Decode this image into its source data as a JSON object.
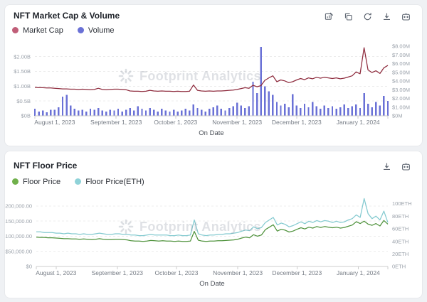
{
  "charts": [
    {
      "title": "NFT Market Cap & Volume",
      "toolbar": [
        "view-table-icon",
        "copy-icon",
        "refresh-icon",
        "download-icon",
        "api-icon"
      ],
      "legend": [
        {
          "label": "Market Cap",
          "color": "#c05e78"
        },
        {
          "label": "Volume",
          "color": "#6a71d6"
        }
      ],
      "watermark": "Footprint Analytics",
      "chart_data": {
        "type": "line+bar",
        "title": "NFT Market Cap & Volume",
        "xlabel": "On Date",
        "x_unit": "days",
        "x_domain": [
          0,
          178
        ],
        "x_ticks": [
          {
            "day": 10,
            "label": "August 1, 2023"
          },
          {
            "day": 41,
            "label": "September 1, 2023"
          },
          {
            "day": 71,
            "label": "October 1, 2023"
          },
          {
            "day": 102,
            "label": "November 1, 2023"
          },
          {
            "day": 132,
            "label": "December 1, 2023"
          },
          {
            "day": 163,
            "label": "January 1, 2024"
          }
        ],
        "left_axis": {
          "unit": "USD billions",
          "min": 0,
          "max": 2.35,
          "ticks": [
            {
              "v": 0,
              "label": "$0B"
            },
            {
              "v": 0.5,
              "label": "$0.5B"
            },
            {
              "v": 1.0,
              "label": "$1.00B"
            },
            {
              "v": 1.5,
              "label": "$1.50B"
            },
            {
              "v": 2.0,
              "label": "$2.00B"
            }
          ]
        },
        "right_axis": {
          "unit": "USD millions",
          "min": 0,
          "max": 8.0,
          "ticks": [
            {
              "v": 0,
              "label": "$0M"
            },
            {
              "v": 1,
              "label": "$1.00M"
            },
            {
              "v": 2,
              "label": "$2.00M"
            },
            {
              "v": 3,
              "label": "$3.00M"
            },
            {
              "v": 4,
              "label": "$4.00M"
            },
            {
              "v": 5,
              "label": "$5.00M"
            },
            {
              "v": 6,
              "label": "$6.00M"
            },
            {
              "v": 7,
              "label": "$7.00M"
            },
            {
              "v": 8,
              "label": "$8.00M"
            }
          ]
        },
        "series": [
          {
            "name": "Volume",
            "type": "bar",
            "axis": "right",
            "color": "#6a71d6",
            "day_step": 2,
            "values": [
              0.8,
              0.5,
              0.6,
              0.4,
              0.7,
              0.7,
              1.0,
              2.2,
              2.4,
              1.2,
              0.8,
              0.6,
              0.7,
              0.5,
              0.8,
              0.7,
              0.9,
              0.6,
              0.5,
              0.7,
              0.6,
              0.8,
              0.5,
              0.7,
              0.9,
              0.6,
              1.1,
              0.8,
              0.6,
              0.9,
              0.7,
              0.5,
              0.8,
              0.6,
              0.5,
              0.7,
              0.5,
              0.6,
              0.8,
              0.6,
              1.3,
              0.9,
              0.7,
              0.5,
              0.8,
              1.0,
              1.2,
              0.8,
              0.6,
              0.9,
              1.1,
              1.5,
              1.2,
              0.9,
              1.1,
              3.9,
              2.6,
              7.9,
              3.4,
              2.8,
              2.4,
              1.6,
              1.2,
              1.4,
              1.0,
              2.5,
              1.2,
              0.9,
              1.4,
              1.0,
              1.6,
              1.1,
              0.8,
              1.2,
              0.9,
              1.1,
              0.8,
              1.0,
              1.3,
              0.9,
              1.1,
              1.3,
              0.9,
              2.6,
              1.4,
              1.0,
              1.6,
              1.2,
              2.3,
              1.7
            ]
          },
          {
            "name": "Market Cap",
            "type": "line",
            "axis": "left",
            "color": "#8e2b3d",
            "day_step": 2,
            "values": [
              0.96,
              0.95,
              0.95,
              0.94,
              0.94,
              0.93,
              0.92,
              0.91,
              0.91,
              0.9,
              0.9,
              0.89,
              0.9,
              0.89,
              0.88,
              0.89,
              0.93,
              0.89,
              0.88,
              0.89,
              0.9,
              0.9,
              0.89,
              0.88,
              0.84,
              0.83,
              0.83,
              0.82,
              0.83,
              0.86,
              0.84,
              0.83,
              0.84,
              0.83,
              0.83,
              0.82,
              0.83,
              0.82,
              0.82,
              0.83,
              1.04,
              0.86,
              0.84,
              0.83,
              0.84,
              0.83,
              0.84,
              0.84,
              0.85,
              0.86,
              0.87,
              0.89,
              0.92,
              0.95,
              0.93,
              1.03,
              0.98,
              1.02,
              1.2,
              1.28,
              1.35,
              1.15,
              1.21,
              1.18,
              1.12,
              1.15,
              1.21,
              1.26,
              1.22,
              1.28,
              1.25,
              1.3,
              1.27,
              1.3,
              1.28,
              1.26,
              1.28,
              1.25,
              1.27,
              1.31,
              1.35,
              1.48,
              1.42,
              2.3,
              1.55,
              1.46,
              1.52,
              1.43,
              1.62,
              1.7
            ]
          }
        ]
      }
    },
    {
      "title": "NFT Floor Price",
      "toolbar": [
        "download-icon",
        "api-icon"
      ],
      "legend": [
        {
          "label": "Floor Price",
          "color": "#70b04b"
        },
        {
          "label": "Floor Price(ETH)",
          "color": "#8fd2d8"
        }
      ],
      "watermark": "Footprint Analytics",
      "chart_data": {
        "type": "line",
        "title": "NFT Floor Price",
        "xlabel": "On Date",
        "x_unit": "days",
        "x_domain": [
          0,
          178
        ],
        "x_ticks": [
          {
            "day": 10,
            "label": "August 1, 2023"
          },
          {
            "day": 41,
            "label": "September 1, 2023"
          },
          {
            "day": 71,
            "label": "October 1, 2023"
          },
          {
            "day": 102,
            "label": "November 1, 2023"
          },
          {
            "day": 132,
            "label": "December 1, 2023"
          },
          {
            "day": 163,
            "label": "January 1, 2024"
          }
        ],
        "left_axis": {
          "unit": "USD",
          "min": 0,
          "max": 235000,
          "ticks": [
            {
              "v": 0,
              "label": "$0"
            },
            {
              "v": 50000,
              "label": "$50,000.00"
            },
            {
              "v": 100000,
              "label": "$100,000.00"
            },
            {
              "v": 150000,
              "label": "$150,000.00"
            },
            {
              "v": 200000,
              "label": "$200,000.00"
            }
          ]
        },
        "right_axis": {
          "unit": "ETH",
          "min": 0,
          "max": 113,
          "ticks": [
            {
              "v": 0,
              "label": "0ETH"
            },
            {
              "v": 20,
              "label": "20ETH"
            },
            {
              "v": 40,
              "label": "40ETH"
            },
            {
              "v": 60,
              "label": "60ETH"
            },
            {
              "v": 80,
              "label": "80ETH"
            },
            {
              "v": 100,
              "label": "100ETH"
            }
          ]
        },
        "series": [
          {
            "name": "Floor Price",
            "type": "line",
            "axis": "left",
            "color": "#4f923c",
            "day_step": 2,
            "values": [
              97000,
              96000,
              96000,
              95000,
              95000,
              94000,
              93000,
              92000,
              92000,
              91000,
              91000,
              90000,
              91000,
              90000,
              89000,
              90000,
              92000,
              90000,
              89000,
              89000,
              90000,
              90000,
              89000,
              88000,
              85000,
              84000,
              84000,
              83000,
              84000,
              86000,
              85000,
              84000,
              85000,
              84000,
              84000,
              83000,
              84000,
              83000,
              83000,
              84000,
              116000,
              87000,
              84000,
              83000,
              84000,
              84000,
              85000,
              85000,
              86000,
              87000,
              88000,
              90000,
              94000,
              97000,
              95000,
              105000,
              100000,
              104000,
              122000,
              130000,
              138000,
              117000,
              123000,
              120000,
              114000,
              117000,
              123000,
              128000,
              124000,
              130000,
              127000,
              132000,
              129000,
              132000,
              130000,
              128000,
              130000,
              127000,
              129000,
              133000,
              137000,
              148000,
              142000,
              150000,
              140000,
              136000,
              142000,
              134000,
              152000,
              140000
            ]
          },
          {
            "name": "Floor Price(ETH)",
            "type": "line",
            "axis": "right",
            "color": "#84cad0",
            "day_step": 2,
            "values": [
              55,
              55,
              54,
              54,
              54,
              53,
              53,
              52,
              53,
              52,
              52,
              51,
              52,
              51,
              51,
              52,
              53,
              52,
              51,
              51,
              52,
              52,
              51,
              51,
              50,
              50,
              49,
              49,
              50,
              51,
              50,
              50,
              50,
              50,
              49,
              49,
              50,
              49,
              49,
              50,
              74,
              52,
              50,
              49,
              50,
              50,
              51,
              51,
              52,
              52,
              53,
              54,
              56,
              58,
              57,
              63,
              60,
              62,
              70,
              74,
              78,
              66,
              69,
              67,
              63,
              65,
              68,
              71,
              68,
              72,
              70,
              73,
              71,
              73,
              72,
              70,
              72,
              70,
              71,
              74,
              76,
              82,
              78,
              108,
              84,
              76,
              80,
              74,
              88,
              70
            ]
          }
        ]
      }
    }
  ]
}
